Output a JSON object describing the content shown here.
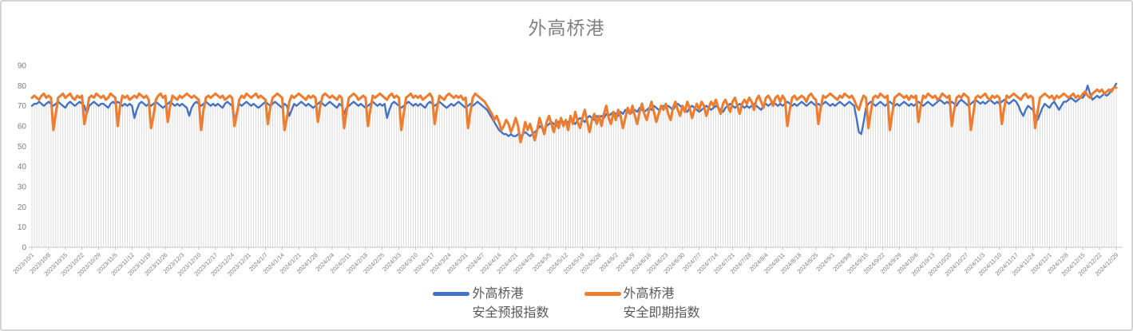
{
  "chart_data": {
    "type": "line",
    "title": "外高桥港",
    "xlabel": "",
    "ylabel": "",
    "ylim": [
      0,
      90
    ],
    "y_ticks": [
      0,
      10,
      20,
      30,
      40,
      50,
      60,
      70,
      80,
      90
    ],
    "x_frequency": "daily",
    "x_range": [
      "2023/10/1",
      "2024/12/29"
    ],
    "x_tick_labels": [
      "2023/10/1",
      "2023/10/8",
      "2023/10/15",
      "2023/10/22",
      "2023/10/29",
      "2023/11/5",
      "2023/11/12",
      "2023/11/19",
      "2023/11/26",
      "2023/12/3",
      "2023/12/10",
      "2023/12/17",
      "2023/12/24",
      "2023/12/31",
      "2024/1/7",
      "2024/1/14",
      "2024/1/21",
      "2024/1/28",
      "2024/2/4",
      "2024/2/11",
      "2024/2/18",
      "2024/2/25",
      "2024/3/3",
      "2024/3/10",
      "2024/3/17",
      "2024/3/24",
      "2024/3/31",
      "2024/4/7",
      "2024/4/14",
      "2024/4/21",
      "2024/4/28",
      "2024/5/5",
      "2024/5/12",
      "2024/5/19",
      "2024/5/26",
      "2024/6/2",
      "2024/6/9",
      "2024/6/16",
      "2024/6/23",
      "2024/6/30",
      "2024/7/7",
      "2024/7/14",
      "2024/7/21",
      "2024/7/28",
      "2024/8/4",
      "2024/8/11",
      "2024/8/18",
      "2024/8/25",
      "2024/9/1",
      "2024/9/8",
      "2024/9/15",
      "2024/9/22",
      "2024/9/29",
      "2024/10/6",
      "2024/10/13",
      "2024/10/20",
      "2024/10/27",
      "2024/11/3",
      "2024/11/10",
      "2024/11/17",
      "2024/11/24",
      "2024/12/1",
      "2024/12/8",
      "2024/12/15",
      "2024/12/22",
      "2024/12/29"
    ],
    "legend_position": "bottom-center",
    "grid": {
      "horizontal": false,
      "vertical_drop_lines": true
    },
    "colors": {
      "dropline": "#D9D9D9",
      "axis": "#C6C6C6",
      "tick_label": "#7F7F7F",
      "title": "#808080",
      "legend_text": "#595959"
    },
    "series": [
      {
        "name": "外高桥港安全预报指数",
        "legend_lines": [
          "外高桥港",
          "安全预报指数"
        ],
        "color": "#4472C4",
        "stroke_width": 2.4,
        "values": [
          70,
          71,
          71,
          72,
          71,
          70,
          71,
          72,
          71,
          70,
          71,
          72,
          71,
          70,
          69,
          71,
          72,
          71,
          70,
          71,
          72,
          71,
          70,
          66,
          70,
          71,
          72,
          71,
          70,
          71,
          71,
          70,
          69,
          71,
          72,
          71,
          72,
          71,
          70,
          71,
          70,
          71,
          70,
          64,
          68,
          71,
          72,
          71,
          70,
          71,
          70,
          71,
          72,
          71,
          70,
          69,
          70,
          71,
          72,
          71,
          70,
          71,
          70,
          71,
          70,
          69,
          65,
          69,
          71,
          72,
          71,
          70,
          71,
          72,
          71,
          70,
          71,
          70,
          71,
          70,
          69,
          71,
          72,
          71,
          70,
          63,
          67,
          71,
          70,
          71,
          72,
          71,
          70,
          71,
          70,
          69,
          70,
          71,
          72,
          71,
          70,
          71,
          72,
          71,
          70,
          69,
          71,
          70,
          65,
          68,
          71,
          70,
          71,
          72,
          71,
          70,
          71,
          70,
          69,
          70,
          71,
          72,
          71,
          70,
          71,
          72,
          71,
          70,
          69,
          71,
          70,
          66,
          69,
          70,
          71,
          72,
          71,
          70,
          71,
          70,
          69,
          70,
          71,
          72,
          71,
          70,
          71,
          70,
          71,
          64,
          68,
          71,
          72,
          71,
          70,
          69,
          70,
          71,
          72,
          71,
          70,
          71,
          70,
          71,
          70,
          69,
          71,
          72,
          71,
          70,
          71,
          72,
          71,
          70,
          69,
          70,
          71,
          70,
          71,
          72,
          71,
          70,
          69,
          70,
          71,
          70,
          71,
          72,
          71,
          70,
          69,
          68,
          66,
          64,
          62,
          60,
          58,
          57,
          56,
          56,
          55,
          56,
          55,
          55,
          56,
          55,
          56,
          57,
          56,
          55,
          56,
          57,
          58,
          60,
          59,
          58,
          60,
          61,
          62,
          61,
          60,
          62,
          63,
          62,
          61,
          62,
          63,
          62,
          61,
          63,
          64,
          63,
          62,
          64,
          65,
          64,
          63,
          65,
          64,
          65,
          64,
          66,
          65,
          66,
          67,
          66,
          65,
          67,
          66,
          68,
          67,
          66,
          67,
          68,
          67,
          69,
          68,
          67,
          68,
          69,
          68,
          70,
          69,
          68,
          69,
          70,
          69,
          70,
          69,
          68,
          70,
          71,
          70,
          69,
          68,
          67,
          69,
          70,
          69,
          68,
          67,
          68,
          69,
          70,
          69,
          68,
          69,
          70,
          69,
          68,
          67,
          69,
          70,
          71,
          70,
          69,
          70,
          71,
          70,
          69,
          70,
          69,
          70,
          71,
          70,
          69,
          68,
          70,
          71,
          70,
          71,
          72,
          71,
          70,
          71,
          70,
          71,
          72,
          71,
          70,
          71,
          70,
          71,
          72,
          71,
          70,
          71,
          72,
          71,
          70,
          71,
          70,
          71,
          72,
          71,
          70,
          71,
          70,
          71,
          72,
          71,
          70,
          71,
          72,
          71,
          70,
          64,
          57,
          56,
          62,
          69,
          71,
          72,
          71,
          70,
          71,
          72,
          71,
          70,
          71,
          72,
          71,
          70,
          71,
          70,
          71,
          72,
          71,
          70,
          71,
          70,
          71,
          72,
          71,
          70,
          71,
          72,
          71,
          70,
          71,
          72,
          73,
          72,
          71,
          72,
          71,
          72,
          71,
          70,
          72,
          73,
          72,
          71,
          70,
          71,
          72,
          73,
          72,
          71,
          72,
          71,
          72,
          73,
          72,
          71,
          72,
          71,
          72,
          73,
          72,
          71,
          72,
          73,
          72,
          70,
          67,
          65,
          68,
          70,
          69,
          68,
          65,
          63,
          66,
          69,
          71,
          70,
          69,
          71,
          72,
          70,
          68,
          70,
          72,
          72,
          73,
          74,
          73,
          72,
          73,
          74,
          74,
          76,
          80,
          76,
          73,
          74,
          75,
          74,
          75,
          76,
          75,
          76,
          78,
          79,
          81
        ]
      },
      {
        "name": "外高桥港安全即期指数",
        "legend_lines": [
          "外高桥港",
          "安全即期指数"
        ],
        "color": "#ED7D31",
        "stroke_width": 3.1,
        "values": [
          74,
          75,
          74,
          73,
          75,
          76,
          74,
          75,
          74,
          58,
          66,
          74,
          75,
          76,
          74,
          75,
          76,
          74,
          73,
          75,
          74,
          75,
          61,
          67,
          74,
          75,
          74,
          76,
          75,
          74,
          75,
          73,
          74,
          76,
          75,
          74,
          60,
          70,
          75,
          74,
          75,
          73,
          74,
          75,
          74,
          76,
          75,
          74,
          75,
          73,
          59,
          65,
          73,
          75,
          76,
          74,
          75,
          62,
          70,
          75,
          74,
          73,
          75,
          74,
          75,
          76,
          75,
          74,
          75,
          74,
          73,
          58,
          68,
          74,
          75,
          74,
          75,
          76,
          75,
          74,
          75,
          73,
          74,
          75,
          74,
          60,
          66,
          73,
          75,
          74,
          76,
          75,
          74,
          75,
          76,
          74,
          75,
          74,
          73,
          61,
          69,
          74,
          75,
          76,
          75,
          74,
          58,
          64,
          72,
          75,
          74,
          75,
          76,
          75,
          74,
          73,
          75,
          74,
          75,
          74,
          62,
          70,
          75,
          76,
          75,
          74,
          75,
          74,
          73,
          75,
          74,
          59,
          67,
          74,
          75,
          76,
          75,
          73,
          74,
          75,
          74,
          60,
          68,
          75,
          74,
          75,
          76,
          75,
          74,
          73,
          75,
          76,
          74,
          75,
          74,
          58,
          66,
          74,
          75,
          76,
          74,
          75,
          74,
          75,
          73,
          74,
          75,
          76,
          74,
          61,
          69,
          75,
          74,
          73,
          75,
          76,
          75,
          74,
          75,
          74,
          75,
          73,
          74,
          59,
          67,
          74,
          76,
          75,
          74,
          73,
          72,
          70,
          68,
          66,
          63,
          65,
          62,
          58,
          60,
          63,
          61,
          57,
          60,
          64,
          60,
          52,
          56,
          62,
          58,
          61,
          57,
          53,
          58,
          64,
          60,
          56,
          62,
          65,
          61,
          57,
          63,
          59,
          64,
          60,
          63,
          58,
          65,
          61,
          67,
          62,
          59,
          64,
          68,
          62,
          57,
          63,
          66,
          61,
          65,
          60,
          66,
          70,
          64,
          61,
          67,
          63,
          68,
          65,
          59,
          64,
          69,
          66,
          70,
          65,
          61,
          67,
          71,
          66,
          63,
          68,
          72,
          67,
          62,
          66,
          70,
          68,
          71,
          66,
          63,
          69,
          72,
          68,
          65,
          70,
          67,
          72,
          69,
          64,
          68,
          71,
          68,
          72,
          70,
          65,
          69,
          72,
          70,
          73,
          69,
          66,
          71,
          73,
          70,
          67,
          72,
          74,
          70,
          66,
          71,
          73,
          71,
          74,
          72,
          68,
          73,
          75,
          72,
          69,
          74,
          75,
          73,
          70,
          74,
          75,
          72,
          75,
          73,
          60,
          68,
          74,
          75,
          73,
          74,
          75,
          74,
          72,
          75,
          76,
          74,
          73,
          61,
          69,
          75,
          74,
          75,
          76,
          75,
          74,
          73,
          75,
          74,
          76,
          75,
          74,
          75,
          73,
          70,
          68,
          72,
          75,
          74,
          59,
          67,
          74,
          75,
          74,
          76,
          75,
          74,
          75,
          58,
          66,
          74,
          75,
          76,
          75,
          74,
          75,
          73,
          75,
          74,
          75,
          62,
          70,
          75,
          74,
          76,
          75,
          74,
          75,
          73,
          74,
          76,
          75,
          74,
          75,
          60,
          68,
          74,
          75,
          74,
          76,
          75,
          74,
          58,
          66,
          74,
          75,
          74,
          75,
          76,
          74,
          73,
          75,
          74,
          75,
          74,
          61,
          69,
          75,
          74,
          75,
          76,
          75,
          74,
          73,
          75,
          76,
          74,
          75,
          74,
          59,
          67,
          74,
          75,
          76,
          75,
          74,
          75,
          73,
          75,
          74,
          75,
          76,
          75,
          74,
          75,
          76,
          74,
          75,
          74,
          76,
          77,
          75,
          74,
          76,
          77,
          78,
          77,
          78,
          76,
          77,
          78,
          77,
          79,
          79
        ]
      }
    ]
  }
}
